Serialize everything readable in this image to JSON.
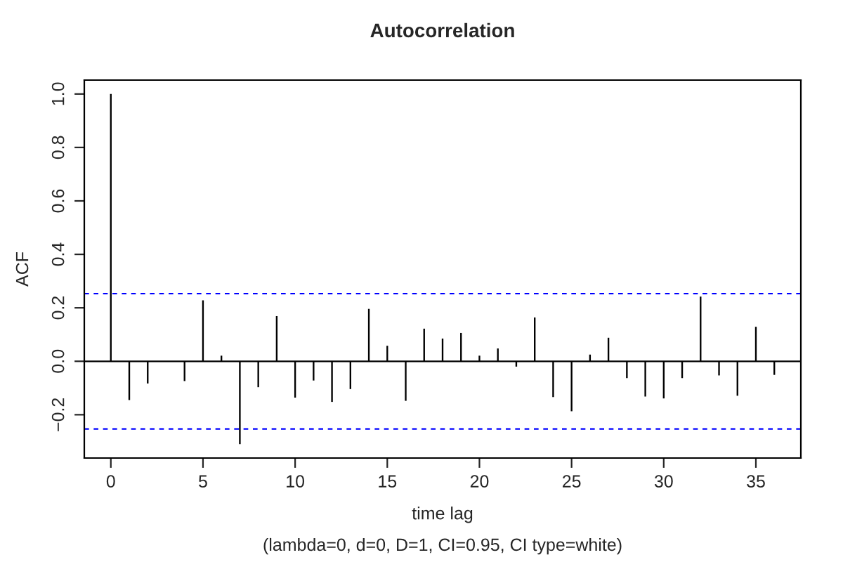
{
  "chart_data": {
    "type": "bar",
    "title": "Autocorrelation",
    "xlabel": "time lag",
    "ylabel": "ACF",
    "annotations": [
      "(lambda=0, d=0, D=1, CI=0.95, CI type=white)"
    ],
    "x": [
      0,
      1,
      2,
      3,
      4,
      5,
      6,
      7,
      8,
      9,
      10,
      11,
      12,
      13,
      14,
      15,
      16,
      17,
      18,
      19,
      20,
      21,
      22,
      23,
      24,
      25,
      26,
      27,
      28,
      29,
      30,
      31,
      32,
      33,
      34,
      35,
      36
    ],
    "values": [
      1.0,
      -0.145,
      -0.083,
      null,
      -0.074,
      0.228,
      0.021,
      -0.31,
      -0.097,
      0.169,
      -0.136,
      -0.072,
      -0.152,
      -0.104,
      0.196,
      0.058,
      -0.148,
      0.122,
      0.085,
      0.106,
      0.021,
      0.048,
      -0.02,
      0.164,
      -0.134,
      -0.187,
      0.025,
      0.088,
      -0.063,
      -0.132,
      -0.139,
      -0.063,
      0.242,
      -0.053,
      -0.129,
      0.129,
      -0.051
    ],
    "color": "#000000",
    "xlim": [
      -1.44,
      37.44
    ],
    "ylim": [
      -0.362,
      1.052
    ],
    "xticks": [
      0,
      5,
      10,
      15,
      20,
      25,
      30,
      35
    ],
    "yticks": [
      {
        "value": -0.2,
        "label": "−0.2"
      },
      {
        "value": 0.0,
        "label": "0.0"
      },
      {
        "value": 0.2,
        "label": "0.2"
      },
      {
        "value": 0.4,
        "label": "0.4"
      },
      {
        "value": 0.6,
        "label": "0.6"
      },
      {
        "value": 0.8,
        "label": "0.8"
      },
      {
        "value": 1.0,
        "label": "1.0"
      }
    ],
    "ref_lines": [
      {
        "axis": "y",
        "value": 0,
        "color": "#000000",
        "line_style": "solid"
      },
      {
        "axis": "y",
        "value": 0.253,
        "color": "#0000ff",
        "line_style": "dashed"
      },
      {
        "axis": "y",
        "value": -0.253,
        "color": "#0000ff",
        "line_style": "dashed"
      }
    ],
    "grid": false,
    "legend": false
  }
}
